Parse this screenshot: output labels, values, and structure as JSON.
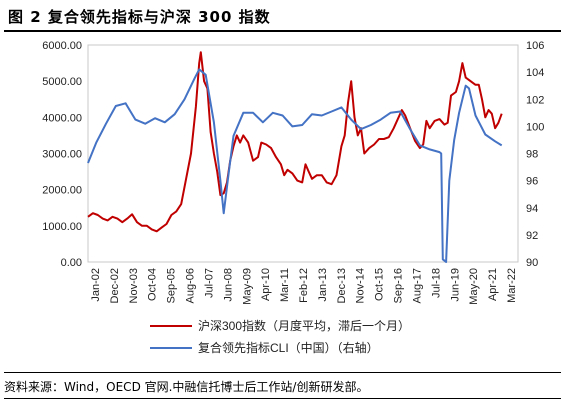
{
  "title": "图 2  复合领先指标与沪深 300 指数",
  "source": "资料来源：Wind，OECD 官网.中融信托博士后工作站/创新研发部。",
  "chart_data": {
    "type": "line",
    "title": "",
    "xlabel": "",
    "ylabel": "",
    "y_left": {
      "ylim": [
        0,
        6000
      ],
      "ticks": [
        "0.00",
        "1000.00",
        "2000.00",
        "3000.00",
        "4000.00",
        "5000.00",
        "6000.00"
      ]
    },
    "y_right": {
      "ylim": [
        90,
        106
      ],
      "ticks": [
        "90",
        "92",
        "94",
        "96",
        "98",
        "100",
        "102",
        "104",
        "106"
      ]
    },
    "x_range": [
      "2002-01",
      "2023-12"
    ],
    "x_ticks": [
      "Jan-02",
      "Dec-02",
      "Nov-03",
      "Oct-04",
      "Sep-05",
      "Aug-06",
      "Jul-07",
      "Jun-08",
      "May-09",
      "Apr-10",
      "Mar-11",
      "Feb-12",
      "Jan-13",
      "Dec-13",
      "Nov-14",
      "Oct-15",
      "Sep-16",
      "Aug-17",
      "Jul-18",
      "Jun-19",
      "May-20",
      "Apr-21",
      "Mar-22"
    ],
    "grid": false,
    "legend_position": "bottom",
    "series": [
      {
        "name": "沪深300指数（月度平均，滞后一个月）",
        "axis": "left",
        "color": "#c00000",
        "points": [
          [
            "2002-01",
            1250
          ],
          [
            "2002-04",
            1350
          ],
          [
            "2002-07",
            1300
          ],
          [
            "2002-10",
            1200
          ],
          [
            "2003-01",
            1150
          ],
          [
            "2003-04",
            1250
          ],
          [
            "2003-07",
            1200
          ],
          [
            "2003-10",
            1100
          ],
          [
            "2004-01",
            1200
          ],
          [
            "2004-04",
            1320
          ],
          [
            "2004-07",
            1100
          ],
          [
            "2004-10",
            1000
          ],
          [
            "2005-01",
            1000
          ],
          [
            "2005-04",
            900
          ],
          [
            "2005-07",
            850
          ],
          [
            "2005-10",
            950
          ],
          [
            "2006-01",
            1050
          ],
          [
            "2006-04",
            1300
          ],
          [
            "2006-07",
            1400
          ],
          [
            "2006-10",
            1600
          ],
          [
            "2007-01",
            2300
          ],
          [
            "2007-04",
            3000
          ],
          [
            "2007-07",
            4300
          ],
          [
            "2007-09",
            5500
          ],
          [
            "2007-10",
            5800
          ],
          [
            "2007-12",
            5000
          ],
          [
            "2008-02",
            4800
          ],
          [
            "2008-04",
            3600
          ],
          [
            "2008-06",
            3000
          ],
          [
            "2008-08",
            2500
          ],
          [
            "2008-10",
            1850
          ],
          [
            "2008-12",
            1900
          ],
          [
            "2009-02",
            2200
          ],
          [
            "2009-04",
            2800
          ],
          [
            "2009-06",
            3200
          ],
          [
            "2009-08",
            3500
          ],
          [
            "2009-10",
            3300
          ],
          [
            "2009-12",
            3500
          ],
          [
            "2010-03",
            3300
          ],
          [
            "2010-06",
            2800
          ],
          [
            "2010-09",
            2900
          ],
          [
            "2010-11",
            3300
          ],
          [
            "2011-02",
            3250
          ],
          [
            "2011-05",
            3150
          ],
          [
            "2011-08",
            2900
          ],
          [
            "2011-11",
            2700
          ],
          [
            "2012-01",
            2400
          ],
          [
            "2012-03",
            2550
          ],
          [
            "2012-06",
            2450
          ],
          [
            "2012-09",
            2250
          ],
          [
            "2012-12",
            2200
          ],
          [
            "2013-02",
            2700
          ],
          [
            "2013-04",
            2500
          ],
          [
            "2013-06",
            2300
          ],
          [
            "2013-09",
            2400
          ],
          [
            "2013-12",
            2400
          ],
          [
            "2014-03",
            2200
          ],
          [
            "2014-06",
            2150
          ],
          [
            "2014-09",
            2400
          ],
          [
            "2014-12",
            3200
          ],
          [
            "2015-02",
            3500
          ],
          [
            "2015-04",
            4400
          ],
          [
            "2015-06",
            5000
          ],
          [
            "2015-08",
            4000
          ],
          [
            "2015-10",
            3500
          ],
          [
            "2015-12",
            3700
          ],
          [
            "2016-02",
            3000
          ],
          [
            "2016-05",
            3150
          ],
          [
            "2016-08",
            3250
          ],
          [
            "2016-11",
            3400
          ],
          [
            "2017-02",
            3400
          ],
          [
            "2017-05",
            3450
          ],
          [
            "2017-08",
            3700
          ],
          [
            "2017-11",
            4000
          ],
          [
            "2018-01",
            4200
          ],
          [
            "2018-03",
            4050
          ],
          [
            "2018-06",
            3700
          ],
          [
            "2018-09",
            3350
          ],
          [
            "2018-12",
            3150
          ],
          [
            "2019-02",
            3250
          ],
          [
            "2019-04",
            3900
          ],
          [
            "2019-06",
            3700
          ],
          [
            "2019-09",
            3900
          ],
          [
            "2019-12",
            3950
          ],
          [
            "2020-03",
            3800
          ],
          [
            "2020-05",
            3850
          ],
          [
            "2020-07",
            4600
          ],
          [
            "2020-10",
            4700
          ],
          [
            "2020-12",
            5000
          ],
          [
            "2021-02",
            5500
          ],
          [
            "2021-04",
            5100
          ],
          [
            "2021-07",
            5000
          ],
          [
            "2021-10",
            4900
          ],
          [
            "2021-12",
            4900
          ],
          [
            "2022-02",
            4500
          ],
          [
            "2022-04",
            4000
          ],
          [
            "2022-06",
            4200
          ],
          [
            "2022-08",
            4100
          ],
          [
            "2022-10",
            3700
          ],
          [
            "2022-12",
            3850
          ],
          [
            "2023-02",
            4100
          ]
        ]
      },
      {
        "name": "复合领先指标CLI（中国）（右轴）",
        "axis": "right",
        "color": "#4472c4",
        "points": [
          [
            "2002-01",
            97.3
          ],
          [
            "2002-06",
            98.8
          ],
          [
            "2002-12",
            100.2
          ],
          [
            "2003-06",
            101.5
          ],
          [
            "2003-12",
            101.7
          ],
          [
            "2004-06",
            100.5
          ],
          [
            "2004-12",
            100.2
          ],
          [
            "2005-06",
            100.6
          ],
          [
            "2005-12",
            100.3
          ],
          [
            "2006-06",
            100.9
          ],
          [
            "2006-12",
            102.0
          ],
          [
            "2007-06",
            103.5
          ],
          [
            "2007-09",
            104.2
          ],
          [
            "2008-01",
            103.8
          ],
          [
            "2008-06",
            100.3
          ],
          [
            "2008-10",
            96.0
          ],
          [
            "2008-12",
            93.6
          ],
          [
            "2009-03",
            96.5
          ],
          [
            "2009-06",
            99.3
          ],
          [
            "2009-12",
            101.0
          ],
          [
            "2010-06",
            101.0
          ],
          [
            "2010-12",
            100.3
          ],
          [
            "2011-06",
            101.0
          ],
          [
            "2011-12",
            100.8
          ],
          [
            "2012-06",
            100.0
          ],
          [
            "2012-12",
            100.1
          ],
          [
            "2013-06",
            100.9
          ],
          [
            "2013-12",
            100.8
          ],
          [
            "2014-06",
            101.1
          ],
          [
            "2014-12",
            101.4
          ],
          [
            "2015-06",
            100.5
          ],
          [
            "2015-12",
            99.8
          ],
          [
            "2016-06",
            100.1
          ],
          [
            "2016-12",
            100.5
          ],
          [
            "2017-06",
            101.0
          ],
          [
            "2017-12",
            101.1
          ],
          [
            "2018-06",
            99.8
          ],
          [
            "2018-12",
            98.6
          ],
          [
            "2019-06",
            98.3
          ],
          [
            "2019-12",
            98.1
          ],
          [
            "2020-01",
            98.0
          ],
          [
            "2020-02",
            90.2
          ],
          [
            "2020-04",
            90.0
          ],
          [
            "2020-06",
            96.0
          ],
          [
            "2020-09",
            99.0
          ],
          [
            "2020-12",
            101.0
          ],
          [
            "2021-04",
            103.0
          ],
          [
            "2021-06",
            102.8
          ],
          [
            "2021-10",
            100.8
          ],
          [
            "2022-04",
            99.4
          ],
          [
            "2022-10",
            98.9
          ],
          [
            "2023-02",
            98.6
          ]
        ]
      }
    ]
  }
}
